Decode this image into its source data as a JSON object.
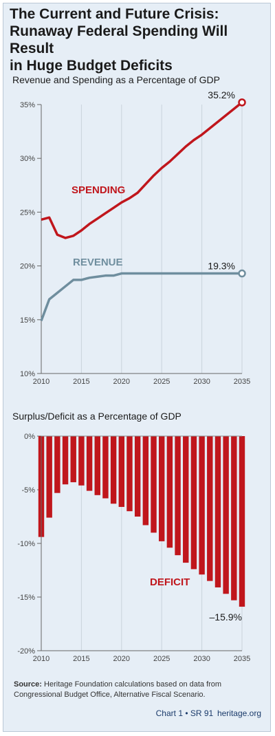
{
  "title": "The Current and Future Crisis:\nRunaway Federal Spending Will Result\nin Huge Budget Deficits",
  "colors": {
    "spending": "#c0161c",
    "revenue": "#6f8e9e",
    "deficit": "#c0161c",
    "grid": "#c9d3dc"
  },
  "chart_data": [
    {
      "type": "line",
      "title": "Revenue and Spending as a Percentage of GDP",
      "x": [
        2010,
        2011,
        2012,
        2013,
        2014,
        2015,
        2016,
        2017,
        2018,
        2019,
        2020,
        2021,
        2022,
        2023,
        2024,
        2025,
        2026,
        2027,
        2028,
        2029,
        2030,
        2031,
        2032,
        2033,
        2034,
        2035
      ],
      "series": [
        {
          "name": "SPENDING",
          "values": [
            24.3,
            24.5,
            22.9,
            22.6,
            22.8,
            23.3,
            23.9,
            24.4,
            24.9,
            25.4,
            25.9,
            26.3,
            26.8,
            27.6,
            28.4,
            29.1,
            29.7,
            30.4,
            31.1,
            31.7,
            32.2,
            32.8,
            33.4,
            34.0,
            34.6,
            35.2
          ]
        },
        {
          "name": "REVENUE",
          "values": [
            14.9,
            16.9,
            17.5,
            18.1,
            18.7,
            18.7,
            18.9,
            19.0,
            19.1,
            19.1,
            19.3,
            19.3,
            19.3,
            19.3,
            19.3,
            19.3,
            19.3,
            19.3,
            19.3,
            19.3,
            19.3,
            19.3,
            19.3,
            19.3,
            19.3,
            19.3
          ]
        }
      ],
      "ylim": [
        10,
        35
      ],
      "yticks": [
        "35%",
        "30%",
        "25%",
        "20%",
        "15%",
        "10%"
      ],
      "xticks": [
        "2010",
        "2015",
        "2020",
        "2025",
        "2030",
        "2035"
      ],
      "end_labels": [
        "35.2%",
        "19.3%"
      ]
    },
    {
      "type": "bar",
      "title": "Surplus/Deficit as a Percentage of GDP",
      "x": [
        2010,
        2011,
        2012,
        2013,
        2014,
        2015,
        2016,
        2017,
        2018,
        2019,
        2020,
        2021,
        2022,
        2023,
        2024,
        2025,
        2026,
        2027,
        2028,
        2029,
        2030,
        2031,
        2032,
        2033,
        2034,
        2035
      ],
      "series": [
        {
          "name": "DEFICIT",
          "values": [
            -9.4,
            -7.6,
            -5.3,
            -4.5,
            -4.3,
            -4.6,
            -5.1,
            -5.5,
            -5.8,
            -6.3,
            -6.6,
            -7.0,
            -7.5,
            -8.3,
            -9.0,
            -9.8,
            -10.4,
            -11.1,
            -11.8,
            -12.4,
            -12.9,
            -13.5,
            -14.1,
            -14.7,
            -15.3,
            -15.9
          ]
        }
      ],
      "ylim": [
        -20,
        0
      ],
      "yticks": [
        "0%",
        "-5%",
        "-10%",
        "-15%",
        "-20%"
      ],
      "xticks": [
        "2010",
        "2015",
        "2020",
        "2025",
        "2030",
        "2035"
      ],
      "end_label": "–15.9%"
    }
  ],
  "source_label": "Source:",
  "source_text": "Heritage Foundation calculations based on data from Congressional Budget Office, Alternative Fiscal Scenario.",
  "footer": "Chart 1 • SR 91   heritage.org"
}
